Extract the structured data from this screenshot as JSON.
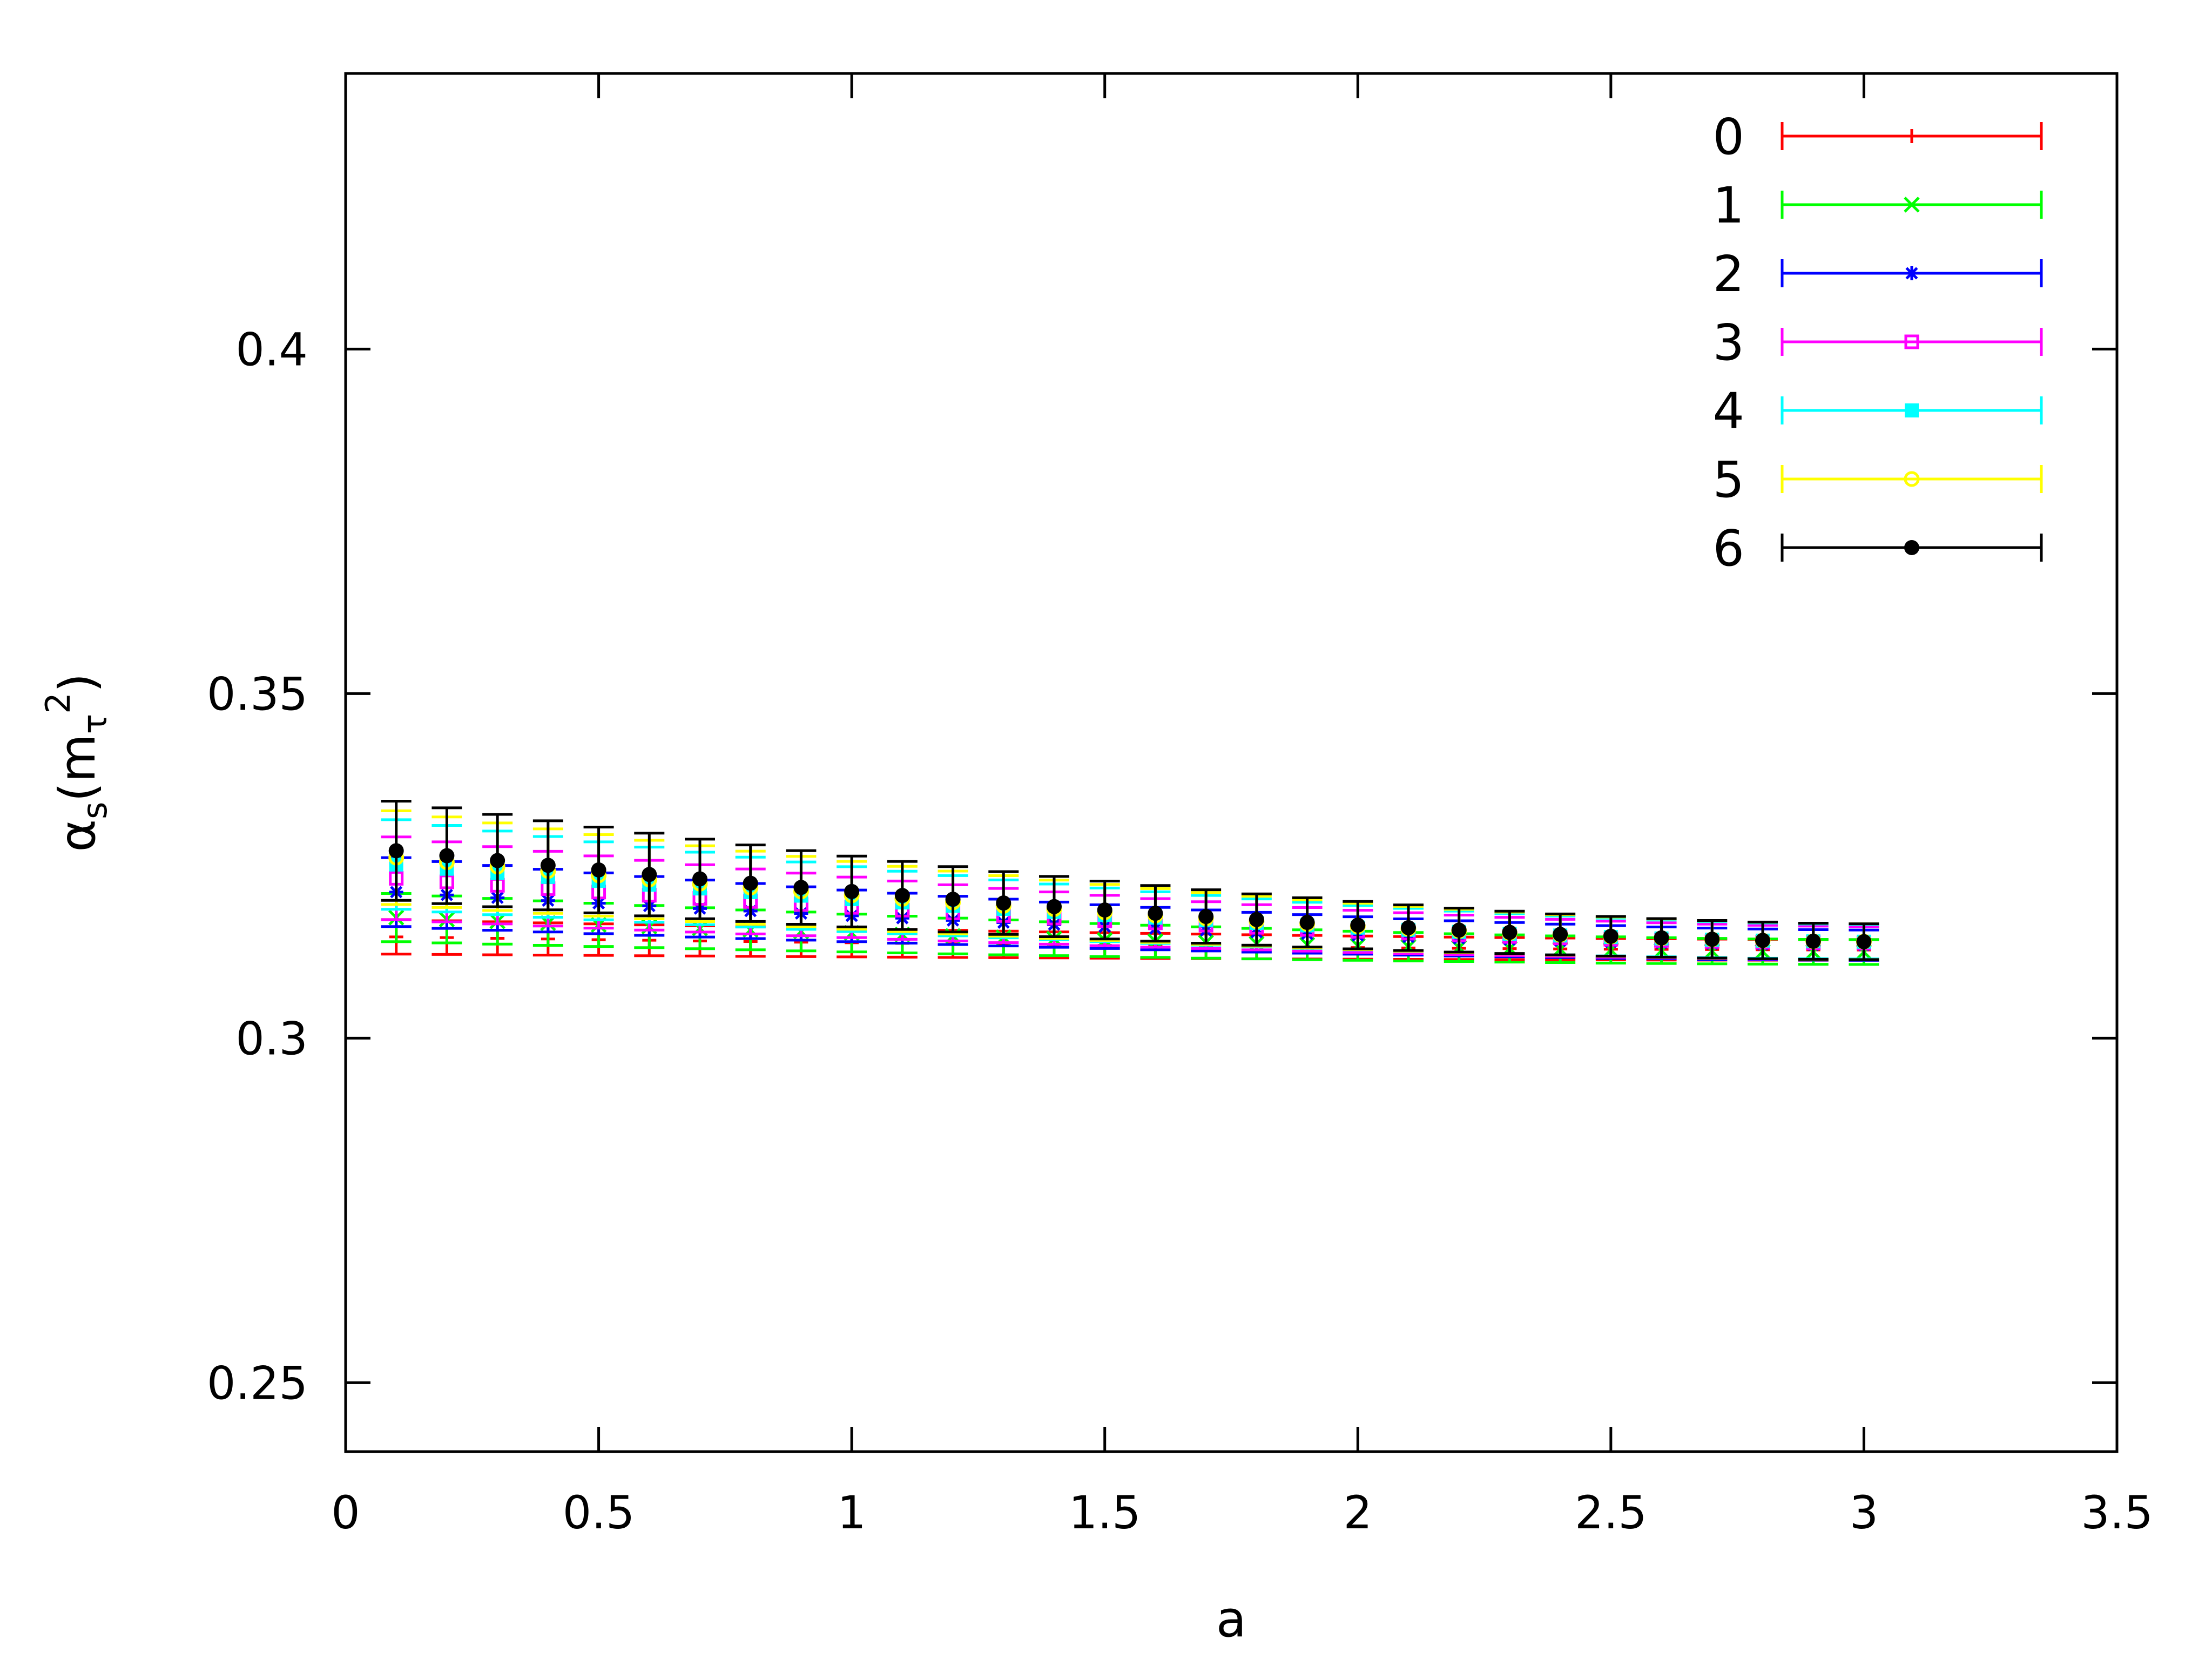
{
  "chart_data": {
    "type": "scatter",
    "xlabel": "a",
    "ylabel": {
      "base": "α",
      "sub1": "s",
      "open": "(m",
      "sub2": "τ",
      "sup": "2",
      "close": ")"
    },
    "xlim": [
      0,
      3.5
    ],
    "ylim": [
      0.24,
      0.44
    ],
    "xticks": [
      "0",
      "0.5",
      "1",
      "1.5",
      "2",
      "2.5",
      "3",
      "3.5"
    ],
    "yticks": [
      "0.25",
      "0.3",
      "0.35",
      "0.4"
    ],
    "grid": false,
    "legend_position": "top-right",
    "x": [
      0.1,
      0.2,
      0.3,
      0.4,
      0.5,
      0.6,
      0.7,
      0.8,
      0.9,
      1.0,
      1.1,
      1.2,
      1.3,
      1.4,
      1.5,
      1.6,
      1.7,
      1.8,
      1.9,
      2.0,
      2.1,
      2.2,
      2.3,
      2.4,
      2.5,
      2.6,
      2.7,
      2.8,
      2.9,
      3.0
    ],
    "series": [
      {
        "name": "0",
        "color": "#ff0000",
        "marker": "plus",
        "start": 0.3147,
        "end": 0.3128,
        "err_start": 0.0025,
        "err_end": 0.0015
      },
      {
        "name": "1",
        "color": "#00ff00",
        "marker": "cross",
        "start": 0.3175,
        "end": 0.3125,
        "err_start": 0.0035,
        "err_end": 0.0018
      },
      {
        "name": "2",
        "color": "#0000ff",
        "marker": "star",
        "start": 0.3212,
        "end": 0.3135,
        "err_start": 0.005,
        "err_end": 0.0022
      },
      {
        "name": "3",
        "color": "#ff00ff",
        "marker": "square-open",
        "start": 0.3232,
        "end": 0.3138,
        "err_start": 0.006,
        "err_end": 0.0024
      },
      {
        "name": "4",
        "color": "#00ffff",
        "marker": "square-filled",
        "start": 0.3252,
        "end": 0.314,
        "err_start": 0.0065,
        "err_end": 0.0025
      },
      {
        "name": "5",
        "color": "#ffff00",
        "marker": "circle-open",
        "start": 0.3262,
        "end": 0.314,
        "err_start": 0.0068,
        "err_end": 0.0026
      },
      {
        "name": "6",
        "color": "#000000",
        "marker": "circle-filled",
        "start": 0.3272,
        "end": 0.314,
        "err_start": 0.0072,
        "err_end": 0.0026
      }
    ]
  }
}
